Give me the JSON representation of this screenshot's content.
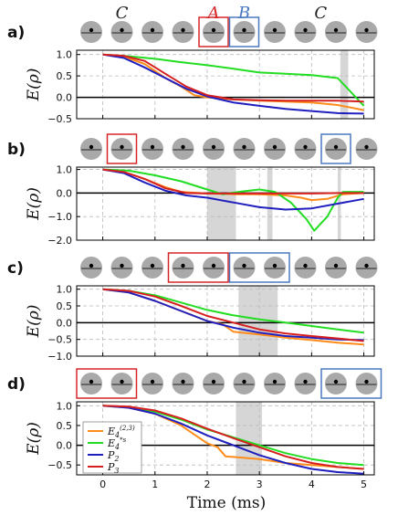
{
  "x_axis_label": "Time (ms)",
  "y_axis_label": "E(ρ)",
  "top_labels": [
    {
      "text": "C",
      "color": "#222222",
      "pos": 1
    },
    {
      "text": "A",
      "color": "#d62728",
      "pos": 4
    },
    {
      "text": "B",
      "color": "#4a78c0",
      "pos": 5
    },
    {
      "text": "C",
      "color": "#222222",
      "pos": 7.5
    }
  ],
  "legend": [
    {
      "label": "E4(2,3)",
      "color": "#ff8c1a"
    },
    {
      "label": "E4*s",
      "color": "#22dd22"
    },
    {
      "label": "P2",
      "color": "#1f1fbf"
    },
    {
      "label": "P3",
      "color": "#d62020"
    }
  ],
  "chart_data": [
    {
      "panel": "a)",
      "type": "line",
      "xlim": [
        -0.5,
        5.2
      ],
      "ylim": [
        -0.5,
        1.1
      ],
      "yticks": [
        -0.5,
        0.0,
        0.5,
        1.0
      ],
      "xticks": [
        0,
        1,
        2,
        3,
        4,
        5
      ],
      "shaded": [
        [
          4.55,
          4.7
        ]
      ],
      "boxes": [
        {
          "from": 4,
          "to": 4,
          "color": "#d62728"
        },
        {
          "from": 5,
          "to": 5,
          "color": "#4a78c0"
        }
      ],
      "series": [
        {
          "name": "E4(2,3)",
          "color": "#ff8c1a",
          "x": [
            0,
            0.4,
            0.8,
            1.2,
            1.5,
            1.75,
            2.0,
            2.5,
            3.0,
            3.5,
            4.0,
            4.5,
            5.0
          ],
          "y": [
            1.0,
            0.95,
            0.78,
            0.45,
            0.25,
            0.05,
            0.0,
            -0.05,
            -0.08,
            -0.1,
            -0.12,
            -0.18,
            -0.3
          ]
        },
        {
          "name": "E4*s",
          "color": "#22dd22",
          "x": [
            0,
            0.5,
            1.0,
            1.5,
            2.0,
            2.5,
            3.0,
            3.5,
            4.0,
            4.5,
            5.0
          ],
          "y": [
            1.0,
            0.96,
            0.9,
            0.82,
            0.75,
            0.67,
            0.58,
            0.55,
            0.52,
            0.45,
            -0.2
          ]
        },
        {
          "name": "P2",
          "color": "#1f1fbf",
          "x": [
            0,
            0.4,
            0.8,
            1.2,
            1.6,
            2.0,
            2.5,
            3.0,
            3.5,
            4.0,
            4.5,
            5.0
          ],
          "y": [
            1.0,
            0.92,
            0.7,
            0.45,
            0.2,
            0.02,
            -0.12,
            -0.2,
            -0.27,
            -0.32,
            -0.37,
            -0.38
          ]
        },
        {
          "name": "P3",
          "color": "#d62020",
          "x": [
            0,
            0.4,
            0.8,
            1.2,
            1.6,
            2.0,
            2.5,
            3.0,
            3.5,
            4.0,
            4.5,
            5.0
          ],
          "y": [
            1.0,
            0.97,
            0.85,
            0.55,
            0.25,
            0.05,
            -0.05,
            -0.07,
            -0.08,
            -0.08,
            -0.08,
            -0.1
          ]
        }
      ]
    },
    {
      "panel": "b)",
      "type": "line",
      "xlim": [
        -0.5,
        5.2
      ],
      "ylim": [
        -2.0,
        1.1
      ],
      "yticks": [
        -2.0,
        -1.0,
        0.0,
        1.0
      ],
      "xticks": [
        0,
        1,
        2,
        3,
        4,
        5
      ],
      "shaded": [
        [
          2.0,
          2.55
        ],
        [
          3.15,
          3.25
        ],
        [
          4.5,
          4.56
        ]
      ],
      "boxes": [
        {
          "from": 1,
          "to": 1,
          "color": "#d62728"
        },
        {
          "from": 8,
          "to": 8,
          "color": "#4a78c0"
        }
      ],
      "series": [
        {
          "name": "E4(2,3)",
          "color": "#ff8c1a",
          "x": [
            0,
            0.4,
            0.8,
            1.2,
            1.5,
            2.0,
            2.5,
            3.0,
            3.5,
            3.8,
            4.0,
            4.3,
            4.6,
            5.0
          ],
          "y": [
            1.0,
            0.9,
            0.6,
            0.25,
            0.05,
            -0.02,
            -0.05,
            -0.05,
            -0.1,
            -0.2,
            -0.3,
            -0.25,
            -0.05,
            0.0
          ]
        },
        {
          "name": "E4*s",
          "color": "#22dd22",
          "x": [
            0,
            0.5,
            1.0,
            1.5,
            2.0,
            2.3,
            2.6,
            3.0,
            3.3,
            3.6,
            3.9,
            4.05,
            4.3,
            4.5,
            4.6,
            5.0
          ],
          "y": [
            1.0,
            0.95,
            0.75,
            0.5,
            0.15,
            -0.05,
            0.05,
            0.15,
            0.05,
            -0.4,
            -1.1,
            -1.6,
            -1.0,
            -0.2,
            0.05,
            0.05
          ]
        },
        {
          "name": "P2",
          "color": "#1f1fbf",
          "x": [
            0,
            0.4,
            0.8,
            1.2,
            1.6,
            2.0,
            2.5,
            3.0,
            3.5,
            4.0,
            4.5,
            5.0
          ],
          "y": [
            1.0,
            0.85,
            0.45,
            0.1,
            -0.1,
            -0.2,
            -0.4,
            -0.6,
            -0.7,
            -0.65,
            -0.45,
            -0.25
          ]
        },
        {
          "name": "P3",
          "color": "#d62020",
          "x": [
            0,
            0.4,
            0.8,
            1.2,
            1.6,
            2.0,
            2.5,
            3.0,
            3.5,
            4.0,
            4.5,
            5.0
          ],
          "y": [
            1.0,
            0.9,
            0.6,
            0.2,
            0.0,
            -0.02,
            -0.02,
            -0.02,
            -0.02,
            -0.02,
            0.0,
            0.0
          ]
        }
      ]
    },
    {
      "panel": "c)",
      "type": "line",
      "xlim": [
        -0.5,
        5.2
      ],
      "ylim": [
        -1.0,
        1.1
      ],
      "yticks": [
        -1.0,
        -0.5,
        0.0,
        0.5,
        1.0
      ],
      "xticks": [
        0,
        1,
        2,
        3,
        4,
        5
      ],
      "shaded": [
        [
          2.6,
          3.35
        ]
      ],
      "boxes": [
        {
          "from": 3,
          "to": 4,
          "color": "#d62728"
        },
        {
          "from": 5,
          "to": 6,
          "color": "#4a78c0"
        }
      ],
      "series": [
        {
          "name": "E4(2,3)",
          "color": "#ff8c1a",
          "x": [
            0,
            0.5,
            1.0,
            1.5,
            2.0,
            2.3,
            2.5,
            3.0,
            3.5,
            4.0,
            4.5,
            5.0
          ],
          "y": [
            1.0,
            0.9,
            0.65,
            0.35,
            0.05,
            -0.05,
            -0.27,
            -0.35,
            -0.45,
            -0.52,
            -0.6,
            -0.65
          ]
        },
        {
          "name": "E4*s",
          "color": "#22dd22",
          "x": [
            0,
            0.5,
            1.0,
            1.5,
            2.0,
            2.5,
            3.0,
            3.5,
            4.0,
            4.5,
            5.0
          ],
          "y": [
            1.0,
            0.95,
            0.82,
            0.6,
            0.38,
            0.22,
            0.1,
            0.0,
            -0.1,
            -0.2,
            -0.3
          ]
        },
        {
          "name": "P2",
          "color": "#1f1fbf",
          "x": [
            0,
            0.5,
            1.0,
            1.5,
            2.0,
            2.5,
            3.0,
            3.5,
            4.0,
            4.5,
            5.0
          ],
          "y": [
            1.0,
            0.9,
            0.65,
            0.35,
            0.05,
            -0.15,
            -0.3,
            -0.4,
            -0.45,
            -0.5,
            -0.52
          ]
        },
        {
          "name": "P3",
          "color": "#d62020",
          "x": [
            0,
            0.5,
            1.0,
            1.5,
            2.0,
            2.5,
            3.0,
            3.5,
            4.0,
            4.5,
            5.0
          ],
          "y": [
            1.0,
            0.95,
            0.78,
            0.5,
            0.2,
            0.0,
            -0.2,
            -0.32,
            -0.4,
            -0.47,
            -0.55
          ]
        }
      ]
    },
    {
      "panel": "d)",
      "type": "line",
      "xlim": [
        -0.5,
        5.2
      ],
      "ylim": [
        -0.75,
        1.1
      ],
      "yticks": [
        -0.5,
        0.0,
        0.5,
        1.0
      ],
      "xticks": [
        0,
        1,
        2,
        3,
        4,
        5
      ],
      "shaded": [
        [
          2.55,
          3.05
        ]
      ],
      "boxes": [
        {
          "from": 0,
          "to": 1,
          "color": "#d62728"
        },
        {
          "from": 8,
          "to": 9,
          "color": "#4a78c0"
        }
      ],
      "series": [
        {
          "name": "E4(2,3)",
          "color": "#ff8c1a",
          "x": [
            0,
            0.5,
            1.0,
            1.5,
            2.0,
            2.2,
            2.35,
            3.0,
            3.5,
            4.0,
            4.5,
            5.0
          ],
          "y": [
            1.0,
            0.95,
            0.8,
            0.5,
            0.05,
            -0.05,
            -0.28,
            -0.35,
            -0.45,
            -0.5,
            -0.55,
            -0.6
          ]
        },
        {
          "name": "E4*s",
          "color": "#22dd22",
          "x": [
            0,
            0.5,
            1.0,
            1.5,
            2.0,
            2.5,
            3.0,
            3.5,
            4.0,
            4.5,
            5.0
          ],
          "y": [
            1.0,
            0.97,
            0.85,
            0.65,
            0.4,
            0.2,
            0.0,
            -0.2,
            -0.35,
            -0.45,
            -0.5
          ]
        },
        {
          "name": "P2",
          "color": "#1f1fbf",
          "x": [
            0,
            0.5,
            1.0,
            1.5,
            2.0,
            2.5,
            3.0,
            3.5,
            4.0,
            4.5,
            5.0
          ],
          "y": [
            1.0,
            0.95,
            0.8,
            0.55,
            0.25,
            0.0,
            -0.25,
            -0.45,
            -0.6,
            -0.68,
            -0.72
          ]
        },
        {
          "name": "P3",
          "color": "#d62020",
          "x": [
            0,
            0.5,
            1.0,
            1.5,
            2.0,
            2.5,
            3.0,
            3.5,
            4.0,
            4.5,
            5.0
          ],
          "y": [
            1.0,
            0.98,
            0.88,
            0.68,
            0.42,
            0.18,
            -0.05,
            -0.28,
            -0.45,
            -0.55,
            -0.6
          ]
        }
      ]
    }
  ]
}
